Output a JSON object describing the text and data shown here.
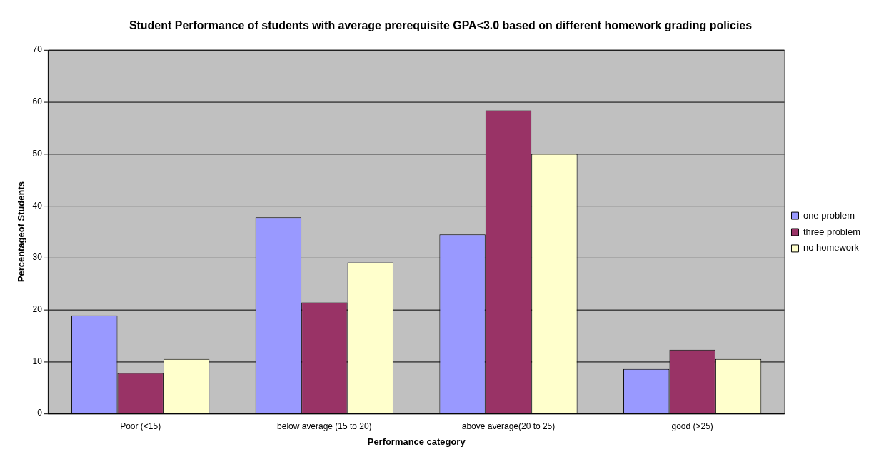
{
  "chart_data": {
    "type": "bar",
    "title": "Student Performance of students with average prerequisite GPA<3.0 based on different homework grading policies",
    "xlabel": "Performance category",
    "ylabel": "Percentageof Students",
    "categories": [
      "Poor (<15)",
      "below average (15 to 20)",
      "above average(20 to 25)",
      "good (>25)"
    ],
    "series": [
      {
        "name": "one problem",
        "color": "#9999ff",
        "values": [
          18.9,
          37.8,
          34.5,
          8.6
        ]
      },
      {
        "name": "three problem",
        "color": "#993366",
        "values": [
          7.8,
          21.4,
          58.4,
          12.3
        ]
      },
      {
        "name": "no homework",
        "color": "#ffffcc",
        "values": [
          10.5,
          29.1,
          50.0,
          10.5
        ]
      }
    ],
    "ylim": [
      0,
      70
    ],
    "yticks": [
      0,
      10,
      20,
      30,
      40,
      50,
      60,
      70
    ],
    "grid": "y",
    "legend": "right"
  }
}
